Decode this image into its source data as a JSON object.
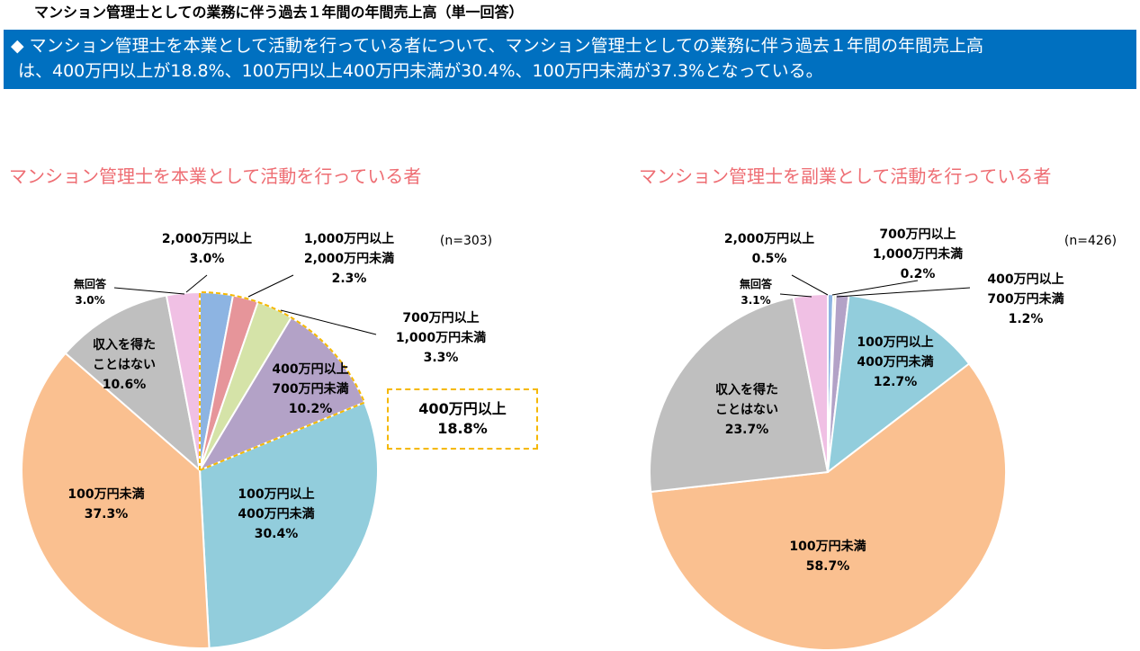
{
  "page_title": "マンション管理士としての業務に伴う過去１年間の年間売上高（単一回答）",
  "summary": {
    "line1": "◆ マンション管理士を本業として活動を行っている者について、マンション管理士としての業務に伴う過去１年間の年間売上高",
    "line2": "は、400万円以上が18.8%、100万円以上400万円未満が30.4%、100万円未満が37.3%となっている。"
  },
  "callout": {
    "line1": "400万円以上",
    "line2": "18.8%"
  },
  "colors": {
    "2000plus": "#8db4e2",
    "1000to2000": "#e6959a",
    "700to1000": "#d5e3a8",
    "400to700": "#b3a2c7",
    "100to400": "#92cddc",
    "under100": "#fac090",
    "none": "#bfbfbf",
    "noanswer": "#f0c0e4",
    "highlight": "#f5b800",
    "chart_title": "#ee6d73"
  },
  "chart_data": [
    {
      "type": "pie",
      "title": "マンション管理士を本業として活動を行っている者",
      "n_label": "(n=303)",
      "slices": [
        {
          "key": "2000plus",
          "label": [
            "2,000万円以上"
          ],
          "value": 3.0
        },
        {
          "key": "1000to2000",
          "label": [
            "1,000万円以上",
            "2,000万円未満"
          ],
          "value": 2.3
        },
        {
          "key": "700to1000",
          "label": [
            "700万円以上",
            "1,000万円未満"
          ],
          "value": 3.3
        },
        {
          "key": "400to700",
          "label": [
            "400万円以上",
            "700万円未満"
          ],
          "value": 10.2
        },
        {
          "key": "100to400",
          "label": [
            "100万円以上",
            "400万円未満"
          ],
          "value": 30.4
        },
        {
          "key": "under100",
          "label": [
            "100万円未満"
          ],
          "value": 37.3
        },
        {
          "key": "none",
          "label": [
            "収入を得た",
            "ことはない"
          ],
          "value": 10.6
        },
        {
          "key": "noanswer",
          "label": [
            "無回答"
          ],
          "value": 3.0
        }
      ]
    },
    {
      "type": "pie",
      "title": "マンション管理士を副業として活動を行っている者",
      "n_label": "(n=426)",
      "slices": [
        {
          "key": "2000plus",
          "label": [
            "2,000万円以上"
          ],
          "value": 0.5
        },
        {
          "key": "700to1000",
          "label": [
            "700万円以上",
            "1,000万円未満"
          ],
          "value": 0.2
        },
        {
          "key": "400to700",
          "label": [
            "400万円以上",
            "700万円未満"
          ],
          "value": 1.2
        },
        {
          "key": "100to400",
          "label": [
            "100万円以上",
            "400万円未満"
          ],
          "value": 12.7
        },
        {
          "key": "under100",
          "label": [
            "100万円未満"
          ],
          "value": 58.7
        },
        {
          "key": "none",
          "label": [
            "収入を得た",
            "ことはない"
          ],
          "value": 23.7
        },
        {
          "key": "noanswer",
          "label": [
            "無回答"
          ],
          "value": 3.1
        }
      ]
    }
  ]
}
